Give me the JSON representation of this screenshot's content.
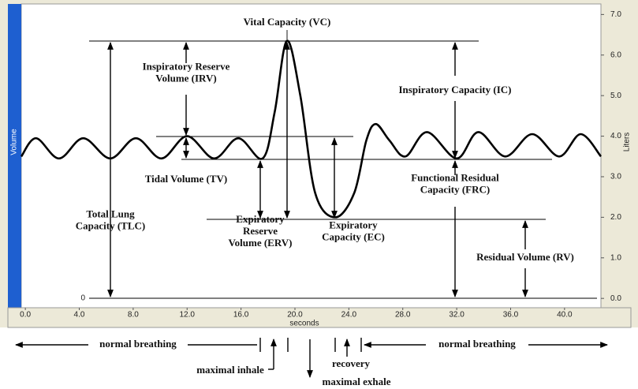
{
  "chart_data": {
    "type": "line",
    "x_label": "seconds",
    "y_label": "Volume",
    "y2_label": "Liters",
    "x": [
      -0.3,
      0.8,
      2.5,
      4.3,
      6.3,
      8.2,
      10.1,
      12,
      14,
      15.8,
      17.6,
      18.5,
      19.4,
      20.4,
      21.5,
      23,
      24.4,
      25.3,
      26,
      27,
      28.2,
      29.8,
      32,
      33.6,
      35.6,
      37.6,
      39.6,
      41.2,
      42.7
    ],
    "series": [
      {
        "color": "#000000",
        "values": [
          3.5,
          3.95,
          3.45,
          3.95,
          3.45,
          3.95,
          3.45,
          4.0,
          3.45,
          3.95,
          3.45,
          4.6,
          6.35,
          5.0,
          2.6,
          2.0,
          2.6,
          3.9,
          4.3,
          3.9,
          3.5,
          4.1,
          3.45,
          4.1,
          3.5,
          4.05,
          3.5,
          4.05,
          3.5
        ]
      }
    ],
    "xlim": [
      -0.3,
      42.7
    ],
    "ylim": [
      -0.23,
      7.26
    ],
    "xticks": [
      {
        "value": 0,
        "label": "0.0"
      },
      {
        "value": 4,
        "label": "4.0"
      },
      {
        "value": 8,
        "label": "8.0"
      },
      {
        "value": 12,
        "label": "12.0"
      },
      {
        "value": 16,
        "label": "16.0"
      },
      {
        "value": 20,
        "label": "20.0"
      },
      {
        "value": 24,
        "label": "24.0"
      },
      {
        "value": 28,
        "label": "28.0"
      },
      {
        "value": 32,
        "label": "32.0"
      },
      {
        "value": 36,
        "label": "36.0"
      },
      {
        "value": 40,
        "label": "40.0"
      }
    ],
    "yticks": [
      {
        "value": 0,
        "label": "0.0"
      },
      {
        "value": 1,
        "label": "1.0"
      },
      {
        "value": 2,
        "label": "2.0"
      },
      {
        "value": 3,
        "label": "3.0"
      },
      {
        "value": 4,
        "label": "4.0"
      },
      {
        "value": 5,
        "label": "5.0"
      },
      {
        "value": 6,
        "label": "6.0"
      },
      {
        "value": 7,
        "label": "7.0"
      }
    ],
    "annotations": [
      [
        "Vital Capacity (VC)"
      ],
      [
        "Inspiratory Reserve",
        "Volume (IRV)"
      ],
      [
        "Tidal Volume (TV)"
      ],
      [
        "Total Lung",
        "Capacity (TLC)"
      ],
      [
        "Expiratory",
        "Reserve",
        "Volume (ERV)"
      ],
      [
        "Expiratory",
        "Capacity (EC)"
      ],
      [
        "Inspiratory Capacity (IC)"
      ],
      [
        "Functional Residual",
        "Capacity (FRC)"
      ],
      [
        "Residual Volume (RV)"
      ],
      [
        "0"
      ],
      [
        "normal breathing"
      ],
      [
        "normal breathing"
      ],
      [
        "maximal inhale"
      ],
      [
        "recovery"
      ],
      [
        "maximal exhale"
      ]
    ]
  }
}
